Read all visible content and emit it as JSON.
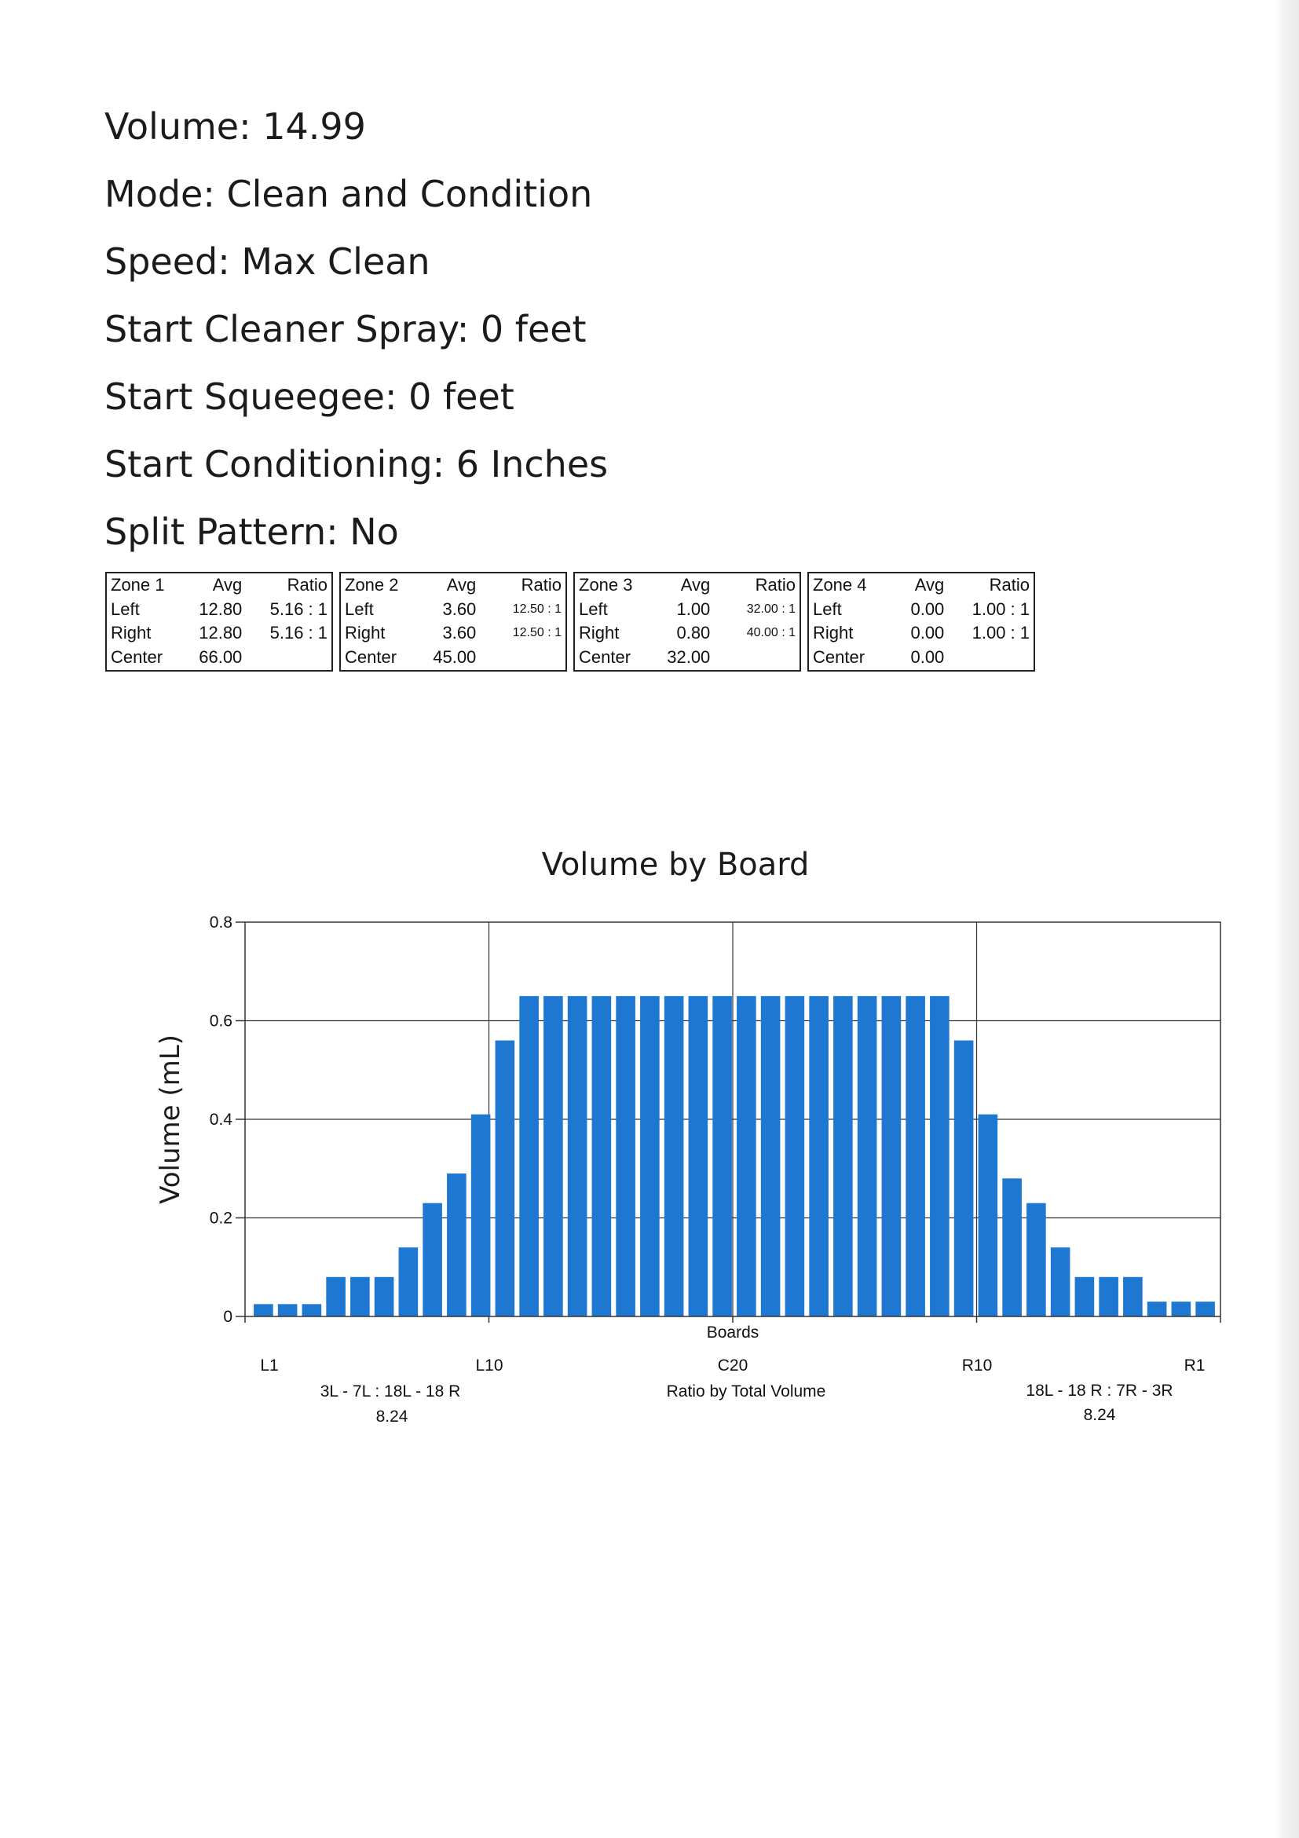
{
  "parameters": [
    "Volume: 14.99",
    "Mode: Clean and Condition",
    "Speed: Max Clean",
    "Start Cleaner Spray: 0 feet",
    "Start Squeegee: 0 feet",
    "Start Conditioning: 6 Inches",
    "Split Pattern: No"
  ],
  "zones": [
    {
      "name": "Zone 1",
      "avg_label": "Avg",
      "ratio_label": "Ratio",
      "rows": [
        {
          "label": "Left",
          "avg": "12.80",
          "ratio": "5.16 : 1"
        },
        {
          "label": "Right",
          "avg": "12.80",
          "ratio": "5.16 : 1"
        },
        {
          "label": "Center",
          "avg": "66.00",
          "ratio": ""
        }
      ]
    },
    {
      "name": "Zone 2",
      "avg_label": "Avg",
      "ratio_label": "Ratio",
      "rows": [
        {
          "label": "Left",
          "avg": "3.60",
          "ratio": "12.50 : 1"
        },
        {
          "label": "Right",
          "avg": "3.60",
          "ratio": "12.50 : 1"
        },
        {
          "label": "Center",
          "avg": "45.00",
          "ratio": ""
        }
      ]
    },
    {
      "name": "Zone 3",
      "avg_label": "Avg",
      "ratio_label": "Ratio",
      "rows": [
        {
          "label": "Left",
          "avg": "1.00",
          "ratio": "32.00 : 1"
        },
        {
          "label": "Right",
          "avg": "0.80",
          "ratio": "40.00 : 1"
        },
        {
          "label": "Center",
          "avg": "32.00",
          "ratio": ""
        }
      ]
    },
    {
      "name": "Zone 4",
      "avg_label": "Avg",
      "ratio_label": "Ratio",
      "rows": [
        {
          "label": "Left",
          "avg": "0.00",
          "ratio": "1.00 : 1"
        },
        {
          "label": "Right",
          "avg": "0.00",
          "ratio": "1.00 : 1"
        },
        {
          "label": "Center",
          "avg": "0.00",
          "ratio": ""
        }
      ]
    }
  ],
  "chart_data": {
    "type": "bar",
    "title": "Volume by Board",
    "xlabel": "Boards",
    "ylabel": "Volume (mL)",
    "ylim": [
      0,
      0.8
    ],
    "yticks": [
      "0",
      "0.2",
      "0.4",
      "0.6",
      "0.8"
    ],
    "grid": true,
    "bar_color": "#1e78d2",
    "x_tick_labels": [
      "L1",
      "L10",
      "C20",
      "R10",
      "R1"
    ],
    "values": [
      0.025,
      0.025,
      0.025,
      0.08,
      0.08,
      0.08,
      0.14,
      0.23,
      0.29,
      0.41,
      0.56,
      0.65,
      0.65,
      0.65,
      0.65,
      0.65,
      0.65,
      0.65,
      0.65,
      0.65,
      0.65,
      0.65,
      0.65,
      0.65,
      0.65,
      0.65,
      0.65,
      0.65,
      0.65,
      0.56,
      0.41,
      0.28,
      0.23,
      0.14,
      0.08,
      0.08,
      0.08,
      0.03,
      0.03,
      0.03
    ],
    "annotations": {
      "left_ratio_label": "3L - 7L : 18L - 18 R",
      "left_ratio_value": "8.24",
      "center_label": "Ratio by Total Volume",
      "right_ratio_label": "18L - 18 R : 7R - 3R",
      "right_ratio_value": "8.24"
    }
  }
}
